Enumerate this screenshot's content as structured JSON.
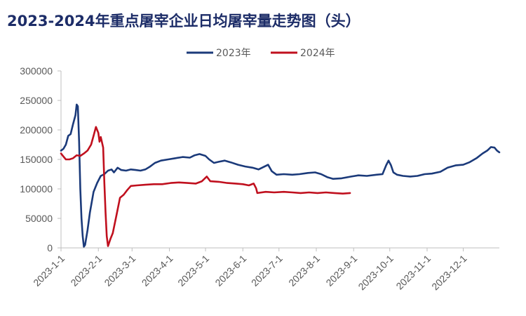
{
  "chart_data": {
    "type": "line",
    "title": "2023-2024年重点屠宰企业日均屠宰量走势图（头）",
    "xlabel": "",
    "ylabel": "",
    "ylim": [
      0,
      300000
    ],
    "yticks": [
      "0",
      "50000",
      "100000",
      "150000",
      "200000",
      "250000",
      "300000"
    ],
    "xticks": [
      "2023-1-1",
      "2023-2-1",
      "2023-3-1",
      "2023-4-1",
      "2023-5-1",
      "2023-6-1",
      "2023-7-1",
      "2023-8-1",
      "2023-9-1",
      "2023-10-1",
      "2023-11-1",
      "2023-12-1"
    ],
    "legend_position": "top-center",
    "grid": false,
    "series": [
      {
        "name": "2023年",
        "color": "#1b3a7a",
        "points": [
          [
            "2023-01-01",
            165000
          ],
          [
            "2023-01-03",
            168000
          ],
          [
            "2023-01-05",
            175000
          ],
          [
            "2023-01-07",
            190000
          ],
          [
            "2023-01-09",
            193000
          ],
          [
            "2023-01-11",
            210000
          ],
          [
            "2023-01-13",
            225000
          ],
          [
            "2023-01-14",
            243000
          ],
          [
            "2023-01-15",
            240000
          ],
          [
            "2023-01-16",
            180000
          ],
          [
            "2023-01-17",
            100000
          ],
          [
            "2023-01-18",
            50000
          ],
          [
            "2023-01-19",
            20000
          ],
          [
            "2023-01-20",
            2000
          ],
          [
            "2023-01-21",
            5000
          ],
          [
            "2023-01-23",
            30000
          ],
          [
            "2023-01-25",
            60000
          ],
          [
            "2023-01-28",
            95000
          ],
          [
            "2023-01-31",
            110000
          ],
          [
            "2023-02-03",
            122000
          ],
          [
            "2023-02-06",
            125000
          ],
          [
            "2023-02-09",
            131000
          ],
          [
            "2023-02-12",
            133000
          ],
          [
            "2023-02-14",
            128000
          ],
          [
            "2023-02-17",
            136000
          ],
          [
            "2023-02-20",
            132000
          ],
          [
            "2023-02-24",
            131000
          ],
          [
            "2023-02-28",
            133000
          ],
          [
            "2023-03-04",
            132000
          ],
          [
            "2023-03-08",
            131000
          ],
          [
            "2023-03-12",
            133000
          ],
          [
            "2023-03-16",
            138000
          ],
          [
            "2023-03-20",
            144000
          ],
          [
            "2023-03-25",
            148000
          ],
          [
            "2023-03-31",
            150000
          ],
          [
            "2023-04-06",
            152000
          ],
          [
            "2023-04-12",
            154000
          ],
          [
            "2023-04-18",
            153000
          ],
          [
            "2023-04-22",
            157000
          ],
          [
            "2023-04-26",
            159000
          ],
          [
            "2023-05-01",
            156000
          ],
          [
            "2023-05-04",
            150000
          ],
          [
            "2023-05-08",
            144000
          ],
          [
            "2023-05-12",
            146000
          ],
          [
            "2023-05-17",
            148000
          ],
          [
            "2023-05-22",
            145000
          ],
          [
            "2023-05-28",
            141000
          ],
          [
            "2023-06-03",
            138000
          ],
          [
            "2023-06-09",
            136000
          ],
          [
            "2023-06-14",
            133000
          ],
          [
            "2023-06-18",
            137000
          ],
          [
            "2023-06-22",
            141000
          ],
          [
            "2023-06-25",
            130000
          ],
          [
            "2023-06-29",
            124000
          ],
          [
            "2023-07-05",
            125000
          ],
          [
            "2023-07-12",
            124000
          ],
          [
            "2023-07-18",
            125000
          ],
          [
            "2023-07-25",
            127000
          ],
          [
            "2023-07-31",
            128000
          ],
          [
            "2023-08-05",
            125000
          ],
          [
            "2023-08-10",
            120000
          ],
          [
            "2023-08-15",
            117000
          ],
          [
            "2023-08-22",
            118000
          ],
          [
            "2023-08-30",
            121000
          ],
          [
            "2023-09-05",
            123000
          ],
          [
            "2023-09-12",
            122000
          ],
          [
            "2023-09-20",
            124000
          ],
          [
            "2023-09-25",
            125000
          ],
          [
            "2023-09-28",
            140000
          ],
          [
            "2023-09-30",
            148000
          ],
          [
            "2023-10-02",
            140000
          ],
          [
            "2023-10-04",
            128000
          ],
          [
            "2023-10-07",
            124000
          ],
          [
            "2023-10-12",
            122000
          ],
          [
            "2023-10-18",
            121000
          ],
          [
            "2023-10-24",
            122000
          ],
          [
            "2023-10-30",
            125000
          ],
          [
            "2023-11-05",
            126000
          ],
          [
            "2023-11-12",
            129000
          ],
          [
            "2023-11-18",
            136000
          ],
          [
            "2023-11-25",
            140000
          ],
          [
            "2023-12-01",
            141000
          ],
          [
            "2023-12-06",
            145000
          ],
          [
            "2023-12-12",
            152000
          ],
          [
            "2023-12-17",
            160000
          ],
          [
            "2023-12-21",
            165000
          ],
          [
            "2023-12-24",
            171000
          ],
          [
            "2023-12-27",
            170000
          ],
          [
            "2023-12-29",
            165000
          ],
          [
            "2023-12-31",
            162000
          ]
        ]
      },
      {
        "name": "2024年",
        "color": "#c0101e",
        "points": [
          [
            "2023-01-01",
            160000
          ],
          [
            "2023-01-03",
            155000
          ],
          [
            "2023-01-05",
            150000
          ],
          [
            "2023-01-08",
            150000
          ],
          [
            "2023-01-11",
            152000
          ],
          [
            "2023-01-14",
            157000
          ],
          [
            "2023-01-17",
            156000
          ],
          [
            "2023-01-20",
            160000
          ],
          [
            "2023-01-23",
            165000
          ],
          [
            "2023-01-26",
            175000
          ],
          [
            "2023-01-28",
            190000
          ],
          [
            "2023-01-30",
            205000
          ],
          [
            "2023-02-01",
            195000
          ],
          [
            "2023-02-02",
            180000
          ],
          [
            "2023-02-03",
            188000
          ],
          [
            "2023-02-05",
            170000
          ],
          [
            "2023-02-06",
            110000
          ],
          [
            "2023-02-07",
            60000
          ],
          [
            "2023-02-08",
            20000
          ],
          [
            "2023-02-09",
            3000
          ],
          [
            "2023-02-11",
            15000
          ],
          [
            "2023-02-13",
            25000
          ],
          [
            "2023-02-16",
            55000
          ],
          [
            "2023-02-19",
            85000
          ],
          [
            "2023-02-22",
            90000
          ],
          [
            "2023-02-25",
            98000
          ],
          [
            "2023-02-28",
            105000
          ],
          [
            "2023-03-05",
            106000
          ],
          [
            "2023-03-12",
            107000
          ],
          [
            "2023-03-19",
            108000
          ],
          [
            "2023-03-26",
            108000
          ],
          [
            "2023-04-02",
            110000
          ],
          [
            "2023-04-09",
            111000
          ],
          [
            "2023-04-16",
            110000
          ],
          [
            "2023-04-23",
            109000
          ],
          [
            "2023-04-28",
            113000
          ],
          [
            "2023-05-02",
            121000
          ],
          [
            "2023-05-05",
            113000
          ],
          [
            "2023-05-12",
            112000
          ],
          [
            "2023-05-19",
            110000
          ],
          [
            "2023-05-26",
            109000
          ],
          [
            "2023-06-01",
            108000
          ],
          [
            "2023-06-06",
            106000
          ],
          [
            "2023-06-10",
            109000
          ],
          [
            "2023-06-12",
            101000
          ],
          [
            "2023-06-13",
            93000
          ],
          [
            "2023-06-20",
            95000
          ],
          [
            "2023-06-27",
            94000
          ],
          [
            "2023-07-05",
            95000
          ],
          [
            "2023-07-12",
            94000
          ],
          [
            "2023-07-19",
            93000
          ],
          [
            "2023-07-26",
            94000
          ],
          [
            "2023-08-02",
            93000
          ],
          [
            "2023-08-09",
            94000
          ],
          [
            "2023-08-16",
            93000
          ],
          [
            "2023-08-23",
            92000
          ],
          [
            "2023-08-29",
            93000
          ]
        ]
      }
    ]
  }
}
